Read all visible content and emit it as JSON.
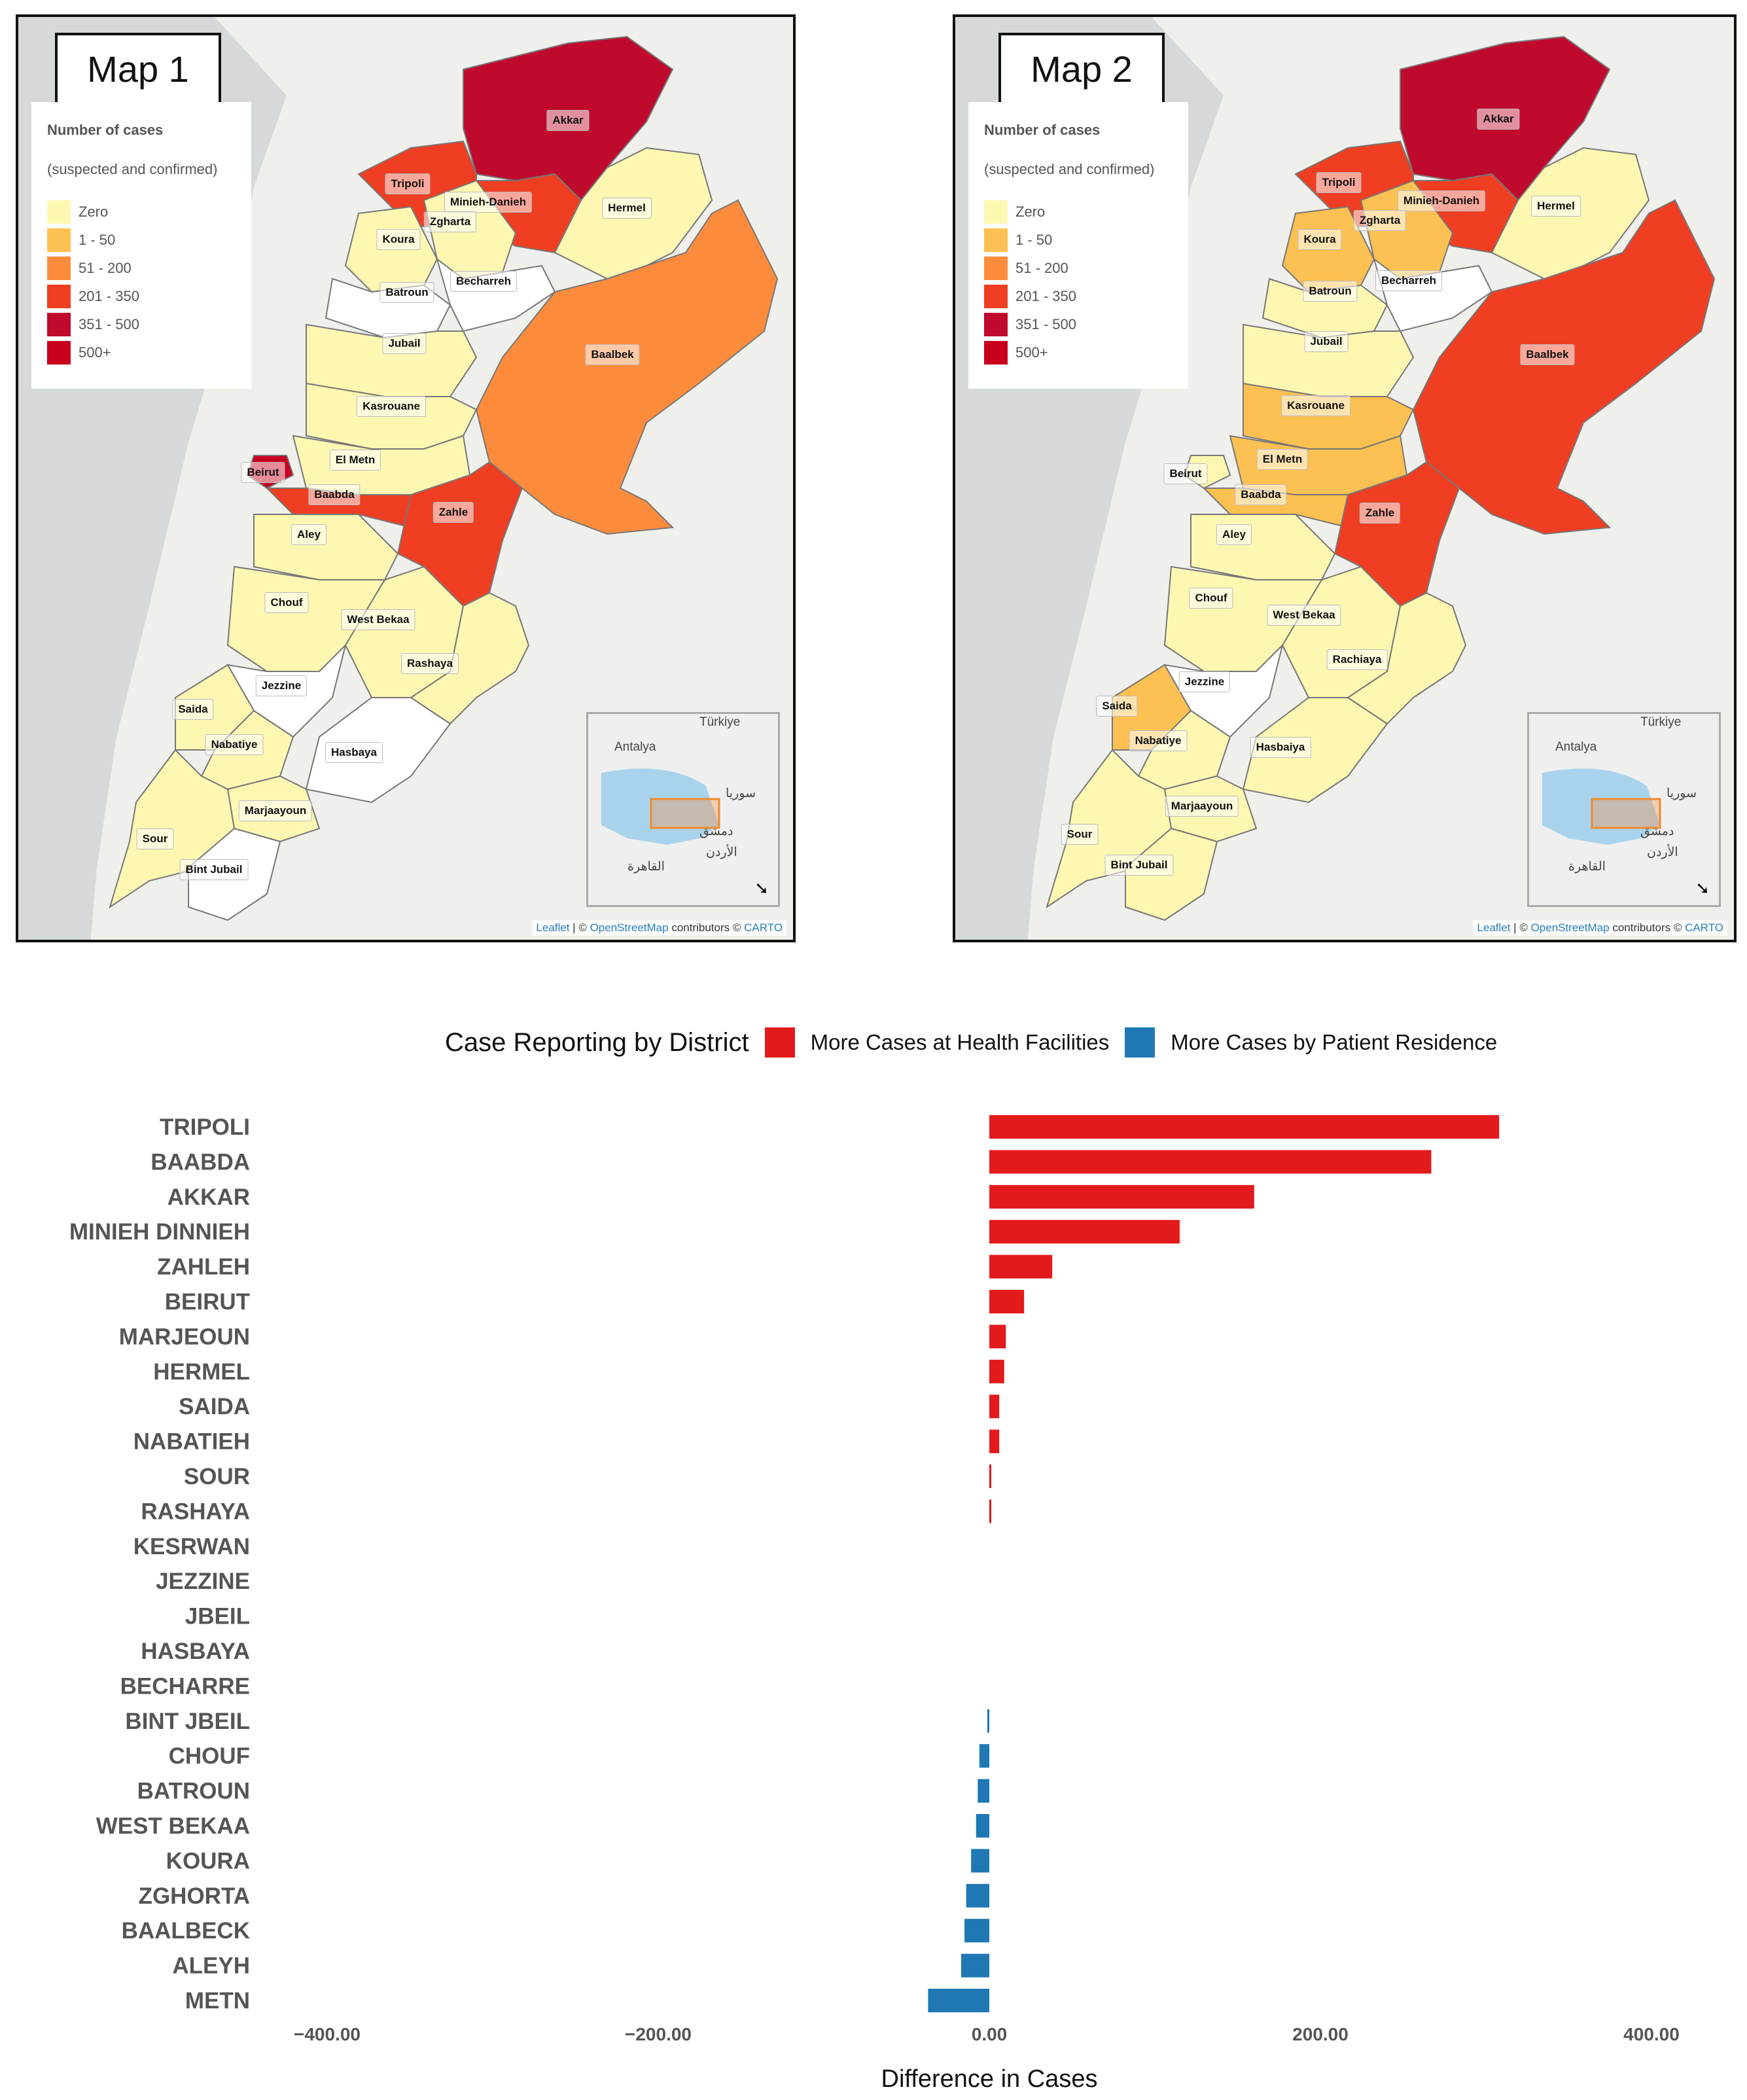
{
  "colors": {
    "zero": "#fdf7b2",
    "r1_50": "#fdc052",
    "r51_200": "#fd8b3c",
    "r201_350": "#ef3e22",
    "r351_500": "#bf0a2d",
    "r500p": "#c8001e",
    "none": "#ffffff",
    "positive": "#e31a1c",
    "negative": "#1f78b4"
  },
  "maps": [
    {
      "title": "Map 1",
      "legend": {
        "title": "Number of cases",
        "subtitle": "(suspected and confirmed)",
        "items": [
          "Zero",
          "1 - 50",
          "51 - 200",
          "201 - 350",
          "351 - 500",
          "500+"
        ]
      },
      "districts": {
        "akkar": "Akkar",
        "tripoli": "Tripoli",
        "minieh": "Minieh-Danieh",
        "hermel": "Hermel",
        "zgharta": "Zgharta",
        "koura": "Koura",
        "batroun": "Batroun",
        "becharreh": "Becharreh",
        "jubail": "Jubail",
        "baalbek": "Baalbek",
        "kasrouane": "Kasrouane",
        "elmetn": "El Metn",
        "beirut": "Beirut",
        "baabda": "Baabda",
        "zahle": "Zahle",
        "aley": "Aley",
        "chouf": "Chouf",
        "westbekaa": "West Bekaa",
        "rashaya": "Rashaya",
        "jezzine": "Jezzine",
        "saida": "Saida",
        "nabatiye": "Nabatiye",
        "hasbaya": "Hasbaya",
        "marjaayoun": "Marjaayoun",
        "sour": "Sour",
        "bintjubail": "Bint Jubail"
      },
      "inset": {
        "l1": "Antalya",
        "l2": "Türkiye",
        "l3": "سوريا",
        "l4": "دمشق",
        "l5": "القاهرة",
        "l6": "الأردن",
        "arrow": "➘"
      },
      "attribution": {
        "leaflet": "Leaflet",
        "sep": " | © ",
        "osm": "OpenStreetMap",
        "rest": " contributors © ",
        "carto": "CARTO"
      }
    },
    {
      "title": "Map 2",
      "legend": {
        "title": "Number of cases",
        "subtitle": "(suspected and confirmed)",
        "items": [
          "Zero",
          "1 - 50",
          "51 - 200",
          "201 - 350",
          "351 - 500",
          "500+"
        ]
      },
      "districts": {
        "akkar": "Akkar",
        "tripoli": "Tripoli",
        "minieh": "Minieh-Danieh",
        "hermel": "Hermel",
        "zgharta": "Zgharta",
        "koura": "Koura",
        "batroun": "Batroun",
        "becharreh": "Becharreh",
        "jubail": "Jubail",
        "baalbek": "Baalbek",
        "kasrouane": "Kasrouane",
        "elmetn": "El Metn",
        "beirut": "Beirut",
        "baabda": "Baabda",
        "zahle": "Zahle",
        "aley": "Aley",
        "chouf": "Chouf",
        "westbekaa": "West Bekaa",
        "rashaya": "Rachiaya",
        "jezzine": "Jezzine",
        "saida": "Saida",
        "nabatiye": "Nabatiye",
        "hasbaya": "Hasbaiya",
        "marjaayoun": "Marjaayoun",
        "sour": "Sour",
        "bintjubail": "Bint Jubail"
      },
      "inset": {
        "l1": "Antalya",
        "l2": "Türkiye",
        "l3": "سوريا",
        "l4": "دمشق",
        "l5": "القاهرة",
        "l6": "الأردن",
        "arrow": "➘"
      },
      "attribution": {
        "leaflet": "Leaflet",
        "sep": " | © ",
        "osm": "OpenStreetMap",
        "rest": " contributors © ",
        "carto": "CARTO"
      }
    }
  ],
  "chart_data": {
    "type": "bar",
    "orientation": "horizontal",
    "legend_title": "Case Reporting by District",
    "legend": [
      "More Cases at Health Facilities",
      "More Cases by Patient Residence"
    ],
    "xlabel": "Difference in Cases",
    "xlim": [
      -400,
      400
    ],
    "xticks": [
      "−400.00",
      "−200.00",
      "0.00",
      "200.00",
      "400.00"
    ],
    "categories": [
      "TRIPOLI",
      "BAABDA",
      "AKKAR",
      "MINIEH DINNIEH",
      "ZAHLEH",
      "BEIRUT",
      "MARJEOUN",
      "HERMEL",
      "SAIDA",
      "NABATIEH",
      "SOUR",
      "RASHAYA",
      "KESRWAN",
      "JEZZINE",
      "JBEIL",
      "HASBAYA",
      "BECHARRE",
      "BINT JBEIL",
      "CHOUF",
      "BATROUN",
      "WEST BEKAA",
      "KOURA",
      "ZGHORTA",
      "BAALBECK",
      "ALEYH",
      "METN"
    ],
    "values": [
      308,
      267,
      160,
      115,
      38,
      21,
      10,
      9,
      6,
      6,
      1,
      1,
      0,
      0,
      0,
      0,
      0,
      -1,
      -6,
      -7,
      -8,
      -11,
      -14,
      -15,
      -17,
      -37
    ]
  }
}
